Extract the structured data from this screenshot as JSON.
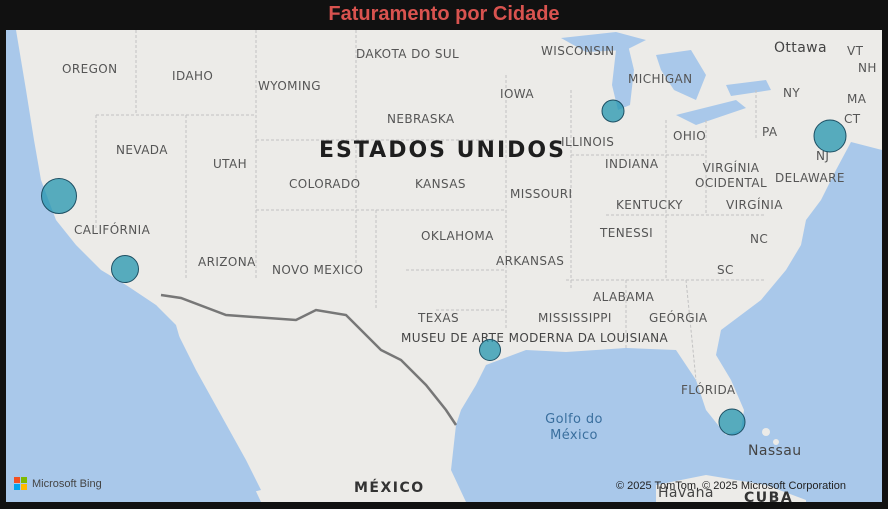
{
  "title": "Faturamento por Cidade",
  "colors": {
    "title": "#d9534f",
    "water": "#a9c8ea",
    "land": "#ecebe8",
    "bubble_fill": "#2496af",
    "bubble_border": "#1d4f63"
  },
  "map": {
    "country_label": "ESTADOS UNIDOS",
    "mexico_label": "MÉXICO",
    "cuba_label": "CUBA",
    "gulf_label": "Golfo do México",
    "museum_label": "MUSEU DE ARTE MODERNA DA LOUISIANA",
    "cities": [
      "Ottawa",
      "Nassau",
      "Havana"
    ],
    "states": [
      "OREGON",
      "IDAHO",
      "WYOMING",
      "DAKOTA DO SUL",
      "WISCONSIN",
      "MICHIGAN",
      "NEVADA",
      "UTAH",
      "NEBRASKA",
      "IOWA",
      "ILLINOIS",
      "OHIO",
      "PA",
      "NY",
      "VT",
      "NH",
      "MA",
      "CT",
      "NJ",
      "INDIANA",
      "VIRGÍNIA OCIDENTAL",
      "DELAWARE",
      "COLORADO",
      "KANSAS",
      "MISSOURI",
      "KENTUCKY",
      "VIRGÍNIA",
      "CALIFÓRNIA",
      "OKLAHOMA",
      "TENESSI",
      "NC",
      "ARIZONA",
      "NOVO MEXICO",
      "ARKANSAS",
      "SC",
      "ALABAMA",
      "TEXAS",
      "MISSISSIPPI",
      "GEÓRGIA",
      "FLÓRIDA"
    ]
  },
  "bubbles": [
    {
      "name": "bubble-san-francisco",
      "size": "large"
    },
    {
      "name": "bubble-los-angeles",
      "size": "medium"
    },
    {
      "name": "bubble-chicago",
      "size": "small"
    },
    {
      "name": "bubble-new-york",
      "size": "large"
    },
    {
      "name": "bubble-houston",
      "size": "small"
    },
    {
      "name": "bubble-miami",
      "size": "medium"
    }
  ],
  "attribution": {
    "bing": "Microsoft Bing",
    "copyright": "© 2025 TomTom, © 2025 Microsoft Corporation"
  }
}
